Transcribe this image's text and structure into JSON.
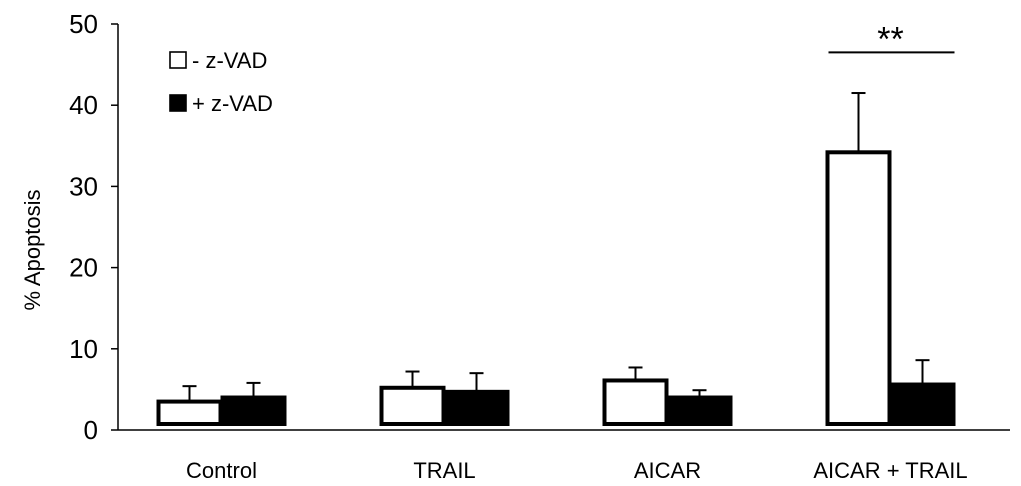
{
  "chart_data": {
    "type": "bar",
    "title": "",
    "xlabel": "",
    "ylabel": "% Apoptosis",
    "ylim": [
      0,
      50
    ],
    "yticks": [
      0,
      10,
      20,
      30,
      40,
      50
    ],
    "categories": [
      "Control",
      "TRAIL",
      "AICAR",
      "AICAR + TRAIL"
    ],
    "series": [
      {
        "name": "- z-VAD",
        "fill": "#ffffff",
        "values": [
          3.5,
          5.2,
          6.1,
          34.2
        ],
        "errors": [
          1.9,
          2.0,
          1.6,
          7.3
        ]
      },
      {
        "name": "+ z-VAD",
        "fill": "#000000",
        "values": [
          4.0,
          4.7,
          4.0,
          5.6
        ],
        "errors": [
          1.8,
          2.3,
          0.9,
          3.0
        ]
      }
    ],
    "legend": {
      "position": "top-left",
      "items": [
        {
          "symbol": "□",
          "label": "- z-VAD"
        },
        {
          "symbol": "■",
          "label": "+ z-VAD"
        }
      ]
    },
    "annotations": [
      {
        "text": "**",
        "category": "AICAR + TRAIL"
      }
    ],
    "grid": false
  }
}
